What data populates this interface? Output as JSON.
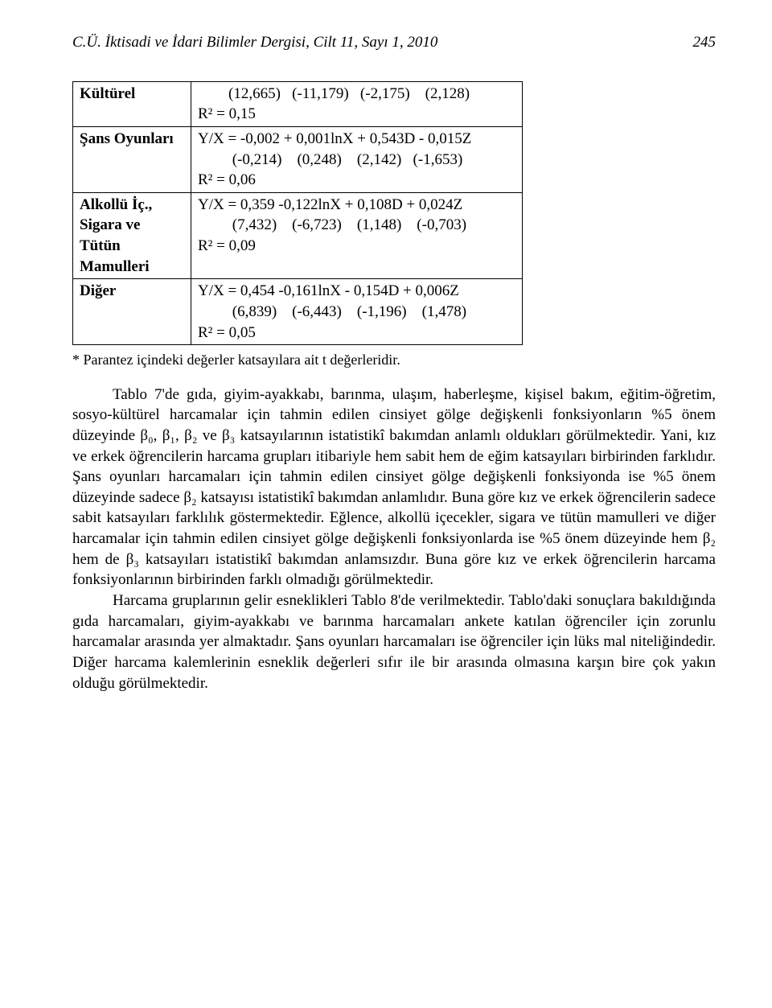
{
  "header": {
    "journal_line": "C.Ü. İktisadi ve İdari Bilimler Dergisi, Cilt 11, Sayı 1, 2010",
    "page_number": "245"
  },
  "table": {
    "rows": [
      {
        "label": "Kültürel",
        "lines": [
          "        (12,665)   (-11,179)   (-2,175)    (2,128)",
          "R² = 0,15"
        ]
      },
      {
        "label": "Şans Oyunları",
        "lines": [
          "Y/X = -0,002 + 0,001lnX + 0,543D - 0,015Z",
          "         (-0,214)    (0,248)    (2,142)   (-1,653)",
          "R² = 0,06"
        ]
      },
      {
        "label": "Alkollü İç., Sigara ve Tütün Mamulleri",
        "lines": [
          "Y/X = 0,359 -0,122lnX + 0,108D + 0,024Z",
          "         (7,432)    (-6,723)    (1,148)    (-0,703)",
          "R² = 0,09"
        ]
      },
      {
        "label": "Diğer",
        "lines": [
          "Y/X = 0,454 -0,161lnX - 0,154D + 0,006Z",
          "         (6,839)    (-6,443)    (-1,196)    (1,478)",
          "R² = 0,05"
        ]
      }
    ],
    "footnote": "* Parantez içindeki değerler katsayılara ait t değerleridir."
  },
  "paragraphs": {
    "p1": "Tablo 7'de gıda, giyim-ayakkabı, barınma, ulaşım, haberleşme, kişisel bakım, eğitim-öğretim, sosyo-kültürel harcamalar için tahmin edilen cinsiyet gölge değişkenli fonksiyonların %5 önem düzeyinde β₀, β₁, β₂ ve β₃ katsayılarının istatistikî bakımdan anlamlı oldukları görülmektedir. Yani, kız ve erkek öğrencilerin harcama grupları itibariyle hem sabit hem de eğim katsayıları birbirinden farklıdır. Şans oyunları harcamaları için tahmin edilen cinsiyet gölge değişkenli fonksiyonda ise %5 önem düzeyinde sadece β₂ katsayısı istatistikî bakımdan anlamlıdır. Buna göre kız ve erkek öğrencilerin sadece sabit katsayıları farklılık göstermektedir. Eğlence, alkollü içecekler, sigara ve tütün mamulleri ve diğer harcamalar için tahmin edilen cinsiyet gölge değişkenli fonksiyonlarda ise %5 önem düzeyinde hem β₂ hem de β₃ katsayıları istatistikî bakımdan anlamsızdır. Buna göre kız ve erkek öğrencilerin harcama fonksiyonlarının birbirinden farklı olmadığı görülmektedir.",
    "p2": "Harcama gruplarının gelir esneklikleri Tablo 8'de verilmektedir. Tablo'daki sonuçlara bakıldığında gıda harcamaları, giyim-ayakkabı ve barınma harcamaları ankete katılan öğrenciler için zorunlu harcamalar arasında yer almaktadır. Şans oyunları harcamaları ise öğrenciler için lüks mal niteliğindedir. Diğer harcama kalemlerinin esneklik değerleri sıfır ile bir arasında olmasına karşın bire çok yakın olduğu görülmektedir."
  }
}
